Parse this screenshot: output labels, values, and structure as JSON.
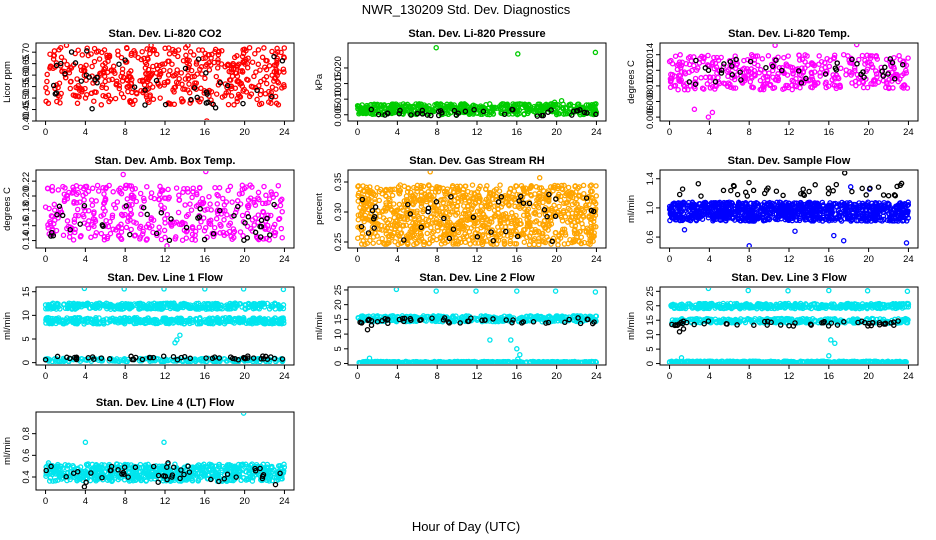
{
  "figure": {
    "title": "NWR_130209  Std. Dev. Diagnostics",
    "xlabel": "Hour of Day (UTC)"
  },
  "chart_data": [
    {
      "type": "scatter",
      "title": "Stan. Dev. Li-820 CO2",
      "ylabel": "Licor ppm",
      "xlim": [
        0,
        24
      ],
      "xticks": [
        0,
        4,
        8,
        12,
        16,
        20,
        24
      ],
      "ylim": [
        0.4,
        0.74
      ],
      "yticks": [
        "0.40",
        "0.45",
        "0.50",
        "0.55",
        "0.60",
        "0.65",
        "0.70"
      ],
      "series": [
        {
          "color": "#ff0000",
          "band": [
            0.47,
            0.72
          ],
          "count": 500,
          "extras": [
            [
              16.2,
              0.4
            ],
            [
              10.6,
              0.73
            ],
            [
              2.1,
              0.73
            ],
            [
              14.3,
              0.73
            ]
          ]
        },
        {
          "color": "#000000",
          "band": [
            0.45,
            0.71
          ],
          "count": 42,
          "extras": []
        }
      ]
    },
    {
      "type": "scatter",
      "title": "Stan. Dev. Li-820 Pressure",
      "ylabel": "kPa",
      "xlim": [
        0,
        24
      ],
      "xticks": [
        0,
        4,
        8,
        12,
        16,
        20,
        24
      ],
      "ylim": [
        0.003,
        0.028
      ],
      "yticks": [
        "0.005",
        "0.010",
        "0.015",
        "0.020"
      ],
      "series": [
        {
          "color": "#00cc00",
          "band": [
            0.005,
            0.0085
          ],
          "count": 520,
          "extras": [
            [
              7.9,
              0.0265
            ],
            [
              16.1,
              0.0245
            ],
            [
              23.9,
              0.025
            ],
            [
              19.8,
              0.009
            ],
            [
              20.5,
              0.0095
            ]
          ]
        },
        {
          "color": "#000000",
          "band": [
            0.0045,
            0.0068
          ],
          "count": 40,
          "extras": []
        }
      ]
    },
    {
      "type": "scatter",
      "title": "Stan. Dev. Li-820 Temp.",
      "ylabel": "degrees C",
      "xlim": [
        0,
        24
      ],
      "xticks": [
        0,
        4,
        8,
        12,
        16,
        20,
        24
      ],
      "ylim": [
        0.0055,
        0.0155
      ],
      "yticks": [
        "0.006",
        "0.008",
        "0.010",
        "0.012",
        "0.014"
      ],
      "series": [
        {
          "color": "#ff00ff",
          "band": [
            0.0095,
            0.014
          ],
          "count": 420,
          "extras": [
            [
              3.9,
              0.006
            ],
            [
              4.3,
              0.0066
            ],
            [
              2.5,
              0.007
            ],
            [
              10.6,
              0.0152
            ],
            [
              18.8,
              0.0153
            ]
          ]
        },
        {
          "color": "#000000",
          "band": [
            0.0102,
            0.0135
          ],
          "count": 40,
          "extras": []
        }
      ]
    },
    {
      "type": "scatter",
      "title": "Stan. Dev. Amb. Box Temp.",
      "ylabel": "degrees C",
      "xlim": [
        0,
        24
      ],
      "xticks": [
        0,
        4,
        8,
        12,
        16,
        20,
        24
      ],
      "ylim": [
        0.13,
        0.235
      ],
      "yticks": [
        "0.14",
        "0.16",
        "0.18",
        "0.20",
        "0.22"
      ],
      "series": [
        {
          "color": "#ff00ff",
          "band": [
            0.14,
            0.215
          ],
          "count": 420,
          "extras": [
            [
              16.1,
              0.233
            ],
            [
              12.2,
              0.133
            ],
            [
              7.8,
              0.229
            ]
          ]
        },
        {
          "color": "#000000",
          "band": [
            0.14,
            0.19
          ],
          "count": 40,
          "extras": []
        }
      ]
    },
    {
      "type": "scatter",
      "title": "Stan. Dev. Gas Stream RH",
      "ylabel": "percent",
      "xlim": [
        0,
        24
      ],
      "xticks": [
        0,
        4,
        8,
        12,
        16,
        20,
        24
      ],
      "ylim": [
        0.24,
        0.37
      ],
      "yticks": [
        "0.25",
        "0.30",
        "0.35"
      ],
      "series": [
        {
          "color": "#ffa500",
          "band": [
            0.245,
            0.345
          ],
          "count": 1100,
          "extras": [
            [
              7.3,
              0.367
            ],
            [
              18.3,
              0.357
            ]
          ]
        },
        {
          "color": "#000000",
          "band": [
            0.25,
            0.33
          ],
          "count": 40,
          "extras": []
        }
      ]
    },
    {
      "type": "scatter",
      "title": "Stan. Dev. Sample Flow",
      "ylabel": "ml/min",
      "xlim": [
        0,
        24
      ],
      "xticks": [
        0,
        4,
        8,
        12,
        16,
        20,
        24
      ],
      "ylim": [
        0.45,
        1.52
      ],
      "yticks": [
        "0.6",
        "1.0",
        "1.4"
      ],
      "series": [
        {
          "color": "#0000ff",
          "band": [
            0.82,
            1.08
          ],
          "count": 1000,
          "extras": [
            [
              8.0,
              0.48
            ],
            [
              17.5,
              0.55
            ],
            [
              23.8,
              0.52
            ],
            [
              16.5,
              0.62
            ],
            [
              1.5,
              0.7
            ],
            [
              12.6,
              0.68
            ],
            [
              20.1,
              1.26
            ],
            [
              18.2,
              1.29
            ]
          ]
        },
        {
          "color": "#000000",
          "band": [
            1.15,
            1.35
          ],
          "count": 40,
          "extras": [
            [
              17.6,
              1.48
            ]
          ]
        }
      ]
    },
    {
      "type": "scatter",
      "title": "Stan. Dev. Line 1 Flow",
      "ylabel": "ml/min",
      "xlim": [
        0,
        24
      ],
      "xticks": [
        0,
        4,
        8,
        12,
        16,
        20,
        24
      ],
      "ylim": [
        -0.5,
        16
      ],
      "yticks": [
        "0",
        "5",
        "10",
        "15"
      ],
      "series": [
        {
          "color": "#00e5ee",
          "band": [
            11.3,
            12.6
          ],
          "count": 400,
          "extras": [
            [
              3.9,
              15.7
            ],
            [
              7.9,
              15.6
            ],
            [
              11.9,
              15.6
            ],
            [
              16.0,
              15.6
            ],
            [
              19.9,
              15.6
            ],
            [
              23.9,
              15.5
            ],
            [
              13.0,
              4.2
            ],
            [
              13.5,
              5.8
            ],
            [
              13.2,
              4.8
            ]
          ]
        },
        {
          "color": "#00e5ee",
          "band": [
            8.2,
            9.5
          ],
          "count": 400,
          "extras": []
        },
        {
          "color": "#00e5ee",
          "band": [
            0.2,
            0.9
          ],
          "count": 200,
          "extras": []
        },
        {
          "color": "#000000",
          "band": [
            0.6,
            1.4
          ],
          "count": 50,
          "extras": []
        }
      ]
    },
    {
      "type": "scatter",
      "title": "Stan. Dev. Line 2 Flow",
      "ylabel": "ml/min",
      "xlim": [
        0,
        24
      ],
      "xticks": [
        0,
        4,
        8,
        12,
        16,
        20,
        24
      ],
      "ylim": [
        -0.5,
        26
      ],
      "yticks": [
        "0",
        "5",
        "10",
        "15",
        "20",
        "25"
      ],
      "series": [
        {
          "color": "#00e5ee",
          "band": [
            14.2,
            16.2
          ],
          "count": 400,
          "extras": [
            [
              3.9,
              25.2
            ],
            [
              7.9,
              24.6
            ],
            [
              11.9,
              24.6
            ],
            [
              16.0,
              24.6
            ],
            [
              19.9,
              24.6
            ],
            [
              23.9,
              24.3
            ],
            [
              13.3,
              8.0
            ],
            [
              15.4,
              8.0
            ],
            [
              16.0,
              5.0
            ],
            [
              16.3,
              3.0
            ],
            [
              16.1,
              1.5
            ]
          ]
        },
        {
          "color": "#00e5ee",
          "band": [
            0.1,
            0.7
          ],
          "count": 400,
          "extras": [
            [
              1.2,
              1.8
            ]
          ]
        },
        {
          "color": "#000000",
          "band": [
            13.5,
            15.5
          ],
          "count": 50,
          "extras": [
            [
              1.0,
              11.5
            ],
            [
              1.4,
              13.0
            ]
          ]
        }
      ]
    },
    {
      "type": "scatter",
      "title": "Stan. Dev. Line 3 Flow",
      "ylabel": "ml/min",
      "xlim": [
        0,
        24
      ],
      "xticks": [
        0,
        4,
        8,
        12,
        16,
        20,
        24
      ],
      "ylim": [
        -0.5,
        26.5
      ],
      "yticks": [
        "0",
        "5",
        "10",
        "15",
        "20",
        "25"
      ],
      "series": [
        {
          "color": "#00e5ee",
          "band": [
            19.0,
            20.8
          ],
          "count": 400,
          "extras": [
            [
              3.9,
              26.0
            ],
            [
              7.9,
              25.3
            ],
            [
              11.9,
              25.2
            ],
            [
              16.0,
              25.3
            ],
            [
              19.9,
              25.2
            ],
            [
              23.9,
              25.0
            ],
            [
              16.2,
              8.2
            ],
            [
              16.6,
              7.0
            ],
            [
              16.0,
              2.7
            ]
          ]
        },
        {
          "color": "#00e5ee",
          "band": [
            14.0,
            15.6
          ],
          "count": 300,
          "extras": []
        },
        {
          "color": "#00e5ee",
          "band": [
            0.2,
            0.8
          ],
          "count": 400,
          "extras": [
            [
              1.2,
              2.0
            ]
          ]
        },
        {
          "color": "#000000",
          "band": [
            13.0,
            14.8
          ],
          "count": 50,
          "extras": [
            [
              1.0,
              11.0
            ],
            [
              1.4,
              12.0
            ]
          ]
        }
      ]
    },
    {
      "type": "scatter",
      "title": "Stan. Dev. Line 4 (LT) Flow",
      "ylabel": "ml/min",
      "xlim": [
        0,
        24
      ],
      "xticks": [
        0,
        4,
        8,
        12,
        16,
        20,
        24
      ],
      "ylim": [
        0.28,
        1.0
      ],
      "yticks": [
        "0.4",
        "0.6",
        "0.8"
      ],
      "series": [
        {
          "color": "#00e5ee",
          "band": [
            0.36,
            0.52
          ],
          "count": 650,
          "extras": [
            [
              19.9,
              0.99
            ],
            [
              4.0,
              0.72
            ],
            [
              11.9,
              0.72
            ],
            [
              0.3,
              0.53
            ]
          ]
        },
        {
          "color": "#000000",
          "band": [
            0.35,
            0.5
          ],
          "count": 45,
          "extras": [
            [
              3.9,
              0.31
            ],
            [
              12.3,
              0.53
            ],
            [
              23.1,
              0.33
            ]
          ]
        }
      ]
    }
  ]
}
